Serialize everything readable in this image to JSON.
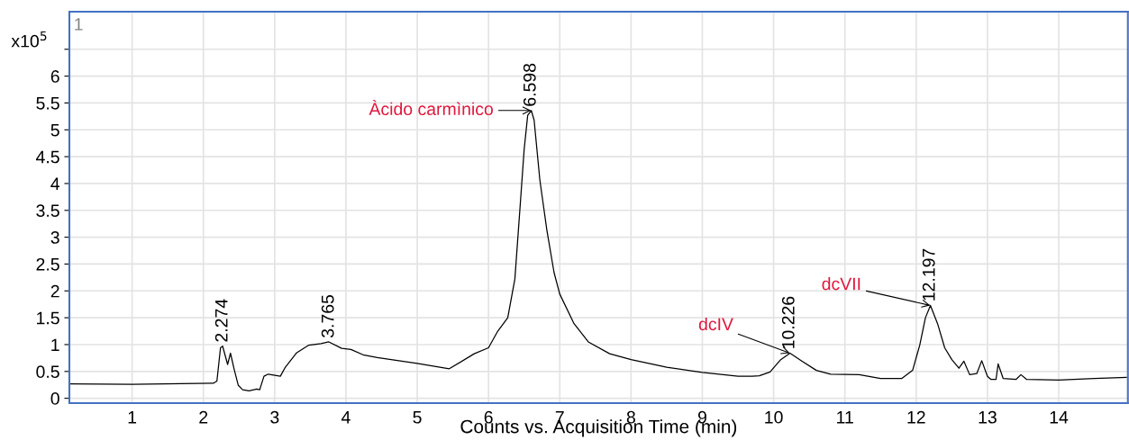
{
  "chart_data": {
    "type": "line",
    "xlabel": "Counts vs. Acquisition Time (min)",
    "ylabel": "x10$^{5}$",
    "x": [
      0.125,
      1.0,
      2.14,
      2.19,
      2.24,
      2.27,
      2.34,
      2.38,
      2.43,
      2.49,
      2.55,
      2.64,
      2.75,
      2.79,
      2.85,
      2.91,
      3.08,
      3.15,
      3.31,
      3.48,
      3.65,
      3.76,
      3.94,
      4.07,
      4.24,
      4.44,
      5.0,
      5.45,
      5.8,
      6.0,
      6.13,
      6.27,
      6.37,
      6.44,
      6.5,
      6.55,
      6.6,
      6.64,
      6.72,
      6.82,
      6.92,
      7.0,
      7.2,
      7.4,
      7.7,
      8.0,
      8.5,
      9.0,
      9.5,
      9.7,
      9.8,
      9.95,
      10.1,
      10.23,
      10.4,
      10.6,
      10.8,
      11.2,
      11.5,
      11.8,
      11.95,
      12.05,
      12.13,
      12.2,
      12.3,
      12.4,
      12.5,
      12.6,
      12.67,
      12.75,
      12.85,
      12.92,
      13.0,
      13.05,
      13.12,
      13.15,
      13.22,
      13.4,
      13.47,
      13.55,
      14.0,
      14.5,
      14.95
    ],
    "series": [
      {
        "color": "#000000",
        "values": [
          0.27,
          0.26,
          0.28,
          0.32,
          0.94,
          0.97,
          0.63,
          0.84,
          0.55,
          0.24,
          0.16,
          0.14,
          0.17,
          0.16,
          0.41,
          0.45,
          0.41,
          0.58,
          0.85,
          0.99,
          1.02,
          1.05,
          0.93,
          0.91,
          0.81,
          0.76,
          0.65,
          0.55,
          0.83,
          0.94,
          1.25,
          1.5,
          2.22,
          3.51,
          4.63,
          5.27,
          5.36,
          5.18,
          4.07,
          3.12,
          2.34,
          1.94,
          1.39,
          1.05,
          0.83,
          0.72,
          0.58,
          0.48,
          0.41,
          0.41,
          0.42,
          0.49,
          0.72,
          0.84,
          0.69,
          0.52,
          0.45,
          0.44,
          0.37,
          0.37,
          0.52,
          0.99,
          1.5,
          1.73,
          1.39,
          0.94,
          0.72,
          0.56,
          0.69,
          0.44,
          0.46,
          0.7,
          0.41,
          0.35,
          0.35,
          0.64,
          0.37,
          0.35,
          0.44,
          0.35,
          0.34,
          0.37,
          0.39
        ]
      }
    ],
    "xlim": [
      0.12,
      14.97
    ],
    "ylim": [
      -0.09,
      7.2
    ],
    "xticks": [
      1,
      2,
      3,
      4,
      5,
      6,
      7,
      8,
      9,
      10,
      11,
      12,
      13,
      14
    ],
    "yticks": [
      0,
      0.5,
      1,
      1.5,
      2,
      2.5,
      3,
      3.5,
      4,
      4.5,
      5,
      5.5,
      6,
      {
        "value": 6.5,
        "label": null
      }
    ],
    "grid": true,
    "marker": "none",
    "line_style": "solid",
    "annotations": [
      "1",
      {
        "text": "2.274",
        "x": 2.274,
        "y": 0.97
      },
      {
        "text": "3.765",
        "x": 3.765,
        "y": 1.05
      },
      {
        "text": "6.598",
        "x": 6.598,
        "y": 5.36
      },
      {
        "text": "10.226",
        "x": 10.226,
        "y": 0.84
      },
      {
        "text": "12.197",
        "x": 12.197,
        "y": 1.73
      },
      {
        "text": "Àcido carmìnico",
        "x": 6.598,
        "y": 5.36
      },
      {
        "text": "dcIV",
        "x": 10.226,
        "y": 0.84
      },
      {
        "text": "dcVII",
        "x": 12.197,
        "y": 1.73
      }
    ]
  }
}
